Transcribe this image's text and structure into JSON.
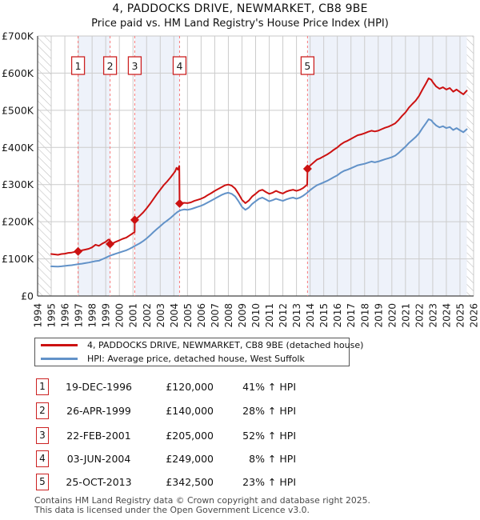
{
  "header": {
    "title": "4, PADDOCKS DRIVE, NEWMARKET, CB8 9BE",
    "subtitle": "Price paid vs. HM Land Registry's House Price Index (HPI)"
  },
  "legend": {
    "property_label": "4, PADDOCKS DRIVE, NEWMARKET, CB8 9BE (detached house)",
    "hpi_label": "HPI: Average price, detached house, West Suffolk"
  },
  "footer": {
    "line1": "Contains HM Land Registry data © Crown copyright and database right 2025.",
    "line2": "This data is licensed under the Open Government Licence v3.0."
  },
  "colors": {
    "property_line": "#cc1111",
    "hpi_line": "#6292c8",
    "sale_dash": "#f97c7c",
    "ownership_shade": "#eef2fa",
    "grid": "#cccccc",
    "border": "#c8c8c8",
    "axis": "#444444",
    "hatch": "#bbbbbb",
    "marker_box_border": "#cc2222",
    "text": "#1a1a1a",
    "footer_text": "#4a4a4a"
  },
  "sales": [
    {
      "num": "1",
      "date": "19-DEC-1996",
      "price": "£120,000",
      "hpi_diff": "41% ↑ HPI",
      "x": 1996.97,
      "value_k": 120
    },
    {
      "num": "2",
      "date": "26-APR-1999",
      "price": "£140,000",
      "hpi_diff": "28% ↑ HPI",
      "x": 1999.32,
      "value_k": 140
    },
    {
      "num": "3",
      "date": "22-FEB-2001",
      "price": "£205,000",
      "hpi_diff": "52% ↑ HPI",
      "x": 2001.13,
      "value_k": 205
    },
    {
      "num": "4",
      "date": "03-JUN-2004",
      "price": "£249,000",
      "hpi_diff": "8% ↑ HPI",
      "x": 2004.42,
      "value_k": 249
    },
    {
      "num": "5",
      "date": "25-OCT-2013",
      "price": "£342,500",
      "hpi_diff": "23% ↑ HPI",
      "x": 2013.81,
      "value_k": 342.5
    }
  ],
  "chart_data": {
    "type": "line",
    "title": "4, PADDOCKS DRIVE, NEWMARKET, CB8 9BE",
    "subtitle": "Price paid vs. HM Land Registry's House Price Index (HPI)",
    "xlabel": "",
    "ylabel": "",
    "y_unit": "thousand GBP",
    "x_range": [
      1994,
      2026
    ],
    "y_range_k": [
      0,
      700
    ],
    "grid": true,
    "legend_position": "bottom",
    "x_ticks": [
      1994,
      1995,
      1996,
      1997,
      1998,
      1999,
      2000,
      2001,
      2002,
      2003,
      2004,
      2005,
      2006,
      2007,
      2008,
      2009,
      2010,
      2011,
      2012,
      2013,
      2014,
      2015,
      2016,
      2017,
      2018,
      2019,
      2020,
      2021,
      2022,
      2023,
      2024,
      2025,
      2026
    ],
    "y_ticks": [
      {
        "v": 0,
        "label": "£0"
      },
      {
        "v": 100,
        "label": "£100K"
      },
      {
        "v": 200,
        "label": "£200K"
      },
      {
        "v": 300,
        "label": "£300K"
      },
      {
        "v": 400,
        "label": "£400K"
      },
      {
        "v": 500,
        "label": "£500K"
      },
      {
        "v": 600,
        "label": "£600K"
      },
      {
        "v": 700,
        "label": "£700K"
      }
    ],
    "ownership_periods": [
      [
        1996.97,
        1999.32
      ],
      [
        2001.13,
        2004.42
      ],
      [
        2013.81,
        2025.5
      ]
    ],
    "no_data_regions": [
      [
        1994,
        1995
      ],
      [
        2025.5,
        2026
      ]
    ],
    "series": [
      {
        "name": "4, PADDOCKS DRIVE, NEWMARKET, CB8 9BE (detached house)",
        "color": "#cc1111",
        "points": [
          [
            1995.0,
            113
          ],
          [
            1995.25,
            112
          ],
          [
            1995.5,
            111
          ],
          [
            1995.75,
            113
          ],
          [
            1996.0,
            114
          ],
          [
            1996.25,
            116
          ],
          [
            1996.5,
            117
          ],
          [
            1996.75,
            119
          ],
          [
            1996.97,
            120
          ],
          [
            1997.25,
            123
          ],
          [
            1997.5,
            125
          ],
          [
            1997.75,
            127
          ],
          [
            1998.0,
            131
          ],
          [
            1998.25,
            138
          ],
          [
            1998.5,
            135
          ],
          [
            1998.75,
            141
          ],
          [
            1999.0,
            146
          ],
          [
            1999.2,
            152
          ],
          [
            1999.3,
            151
          ],
          [
            1999.32,
            140
          ],
          [
            1999.5,
            142
          ],
          [
            1999.75,
            146
          ],
          [
            2000.0,
            150
          ],
          [
            2000.25,
            154
          ],
          [
            2000.5,
            157
          ],
          [
            2000.75,
            163
          ],
          [
            2001.0,
            169
          ],
          [
            2001.12,
            172
          ],
          [
            2001.13,
            205
          ],
          [
            2001.25,
            208
          ],
          [
            2001.5,
            216
          ],
          [
            2001.75,
            225
          ],
          [
            2002.0,
            236
          ],
          [
            2002.25,
            248
          ],
          [
            2002.5,
            261
          ],
          [
            2002.75,
            274
          ],
          [
            2003.0,
            286
          ],
          [
            2003.25,
            298
          ],
          [
            2003.5,
            308
          ],
          [
            2003.75,
            319
          ],
          [
            2004.0,
            331
          ],
          [
            2004.1,
            336
          ],
          [
            2004.2,
            345
          ],
          [
            2004.3,
            340
          ],
          [
            2004.4,
            350
          ],
          [
            2004.42,
            249
          ],
          [
            2004.6,
            250
          ],
          [
            2004.75,
            251
          ],
          [
            2005.0,
            250
          ],
          [
            2005.25,
            252
          ],
          [
            2005.5,
            256
          ],
          [
            2005.75,
            259
          ],
          [
            2006.0,
            262
          ],
          [
            2006.25,
            266
          ],
          [
            2006.5,
            272
          ],
          [
            2006.75,
            277
          ],
          [
            2007.0,
            283
          ],
          [
            2007.25,
            288
          ],
          [
            2007.5,
            293
          ],
          [
            2007.75,
            298
          ],
          [
            2008.0,
            300
          ],
          [
            2008.25,
            297
          ],
          [
            2008.5,
            289
          ],
          [
            2008.75,
            275
          ],
          [
            2009.0,
            259
          ],
          [
            2009.25,
            250
          ],
          [
            2009.5,
            257
          ],
          [
            2009.75,
            268
          ],
          [
            2010.0,
            275
          ],
          [
            2010.25,
            283
          ],
          [
            2010.5,
            286
          ],
          [
            2010.75,
            280
          ],
          [
            2011.0,
            275
          ],
          [
            2011.25,
            278
          ],
          [
            2011.5,
            283
          ],
          [
            2011.75,
            279
          ],
          [
            2012.0,
            276
          ],
          [
            2012.25,
            281
          ],
          [
            2012.5,
            284
          ],
          [
            2012.75,
            286
          ],
          [
            2013.0,
            283
          ],
          [
            2013.25,
            286
          ],
          [
            2013.5,
            291
          ],
          [
            2013.79,
            300
          ],
          [
            2013.81,
            342.5
          ],
          [
            2014.0,
            351
          ],
          [
            2014.25,
            359
          ],
          [
            2014.5,
            367
          ],
          [
            2014.75,
            371
          ],
          [
            2015.0,
            376
          ],
          [
            2015.25,
            381
          ],
          [
            2015.5,
            387
          ],
          [
            2015.75,
            394
          ],
          [
            2016.0,
            400
          ],
          [
            2016.25,
            408
          ],
          [
            2016.5,
            414
          ],
          [
            2016.75,
            418
          ],
          [
            2017.0,
            423
          ],
          [
            2017.25,
            428
          ],
          [
            2017.5,
            433
          ],
          [
            2017.75,
            435
          ],
          [
            2018.0,
            438
          ],
          [
            2018.25,
            442
          ],
          [
            2018.5,
            445
          ],
          [
            2018.75,
            443
          ],
          [
            2019.0,
            445
          ],
          [
            2019.25,
            449
          ],
          [
            2019.5,
            453
          ],
          [
            2019.75,
            456
          ],
          [
            2020.0,
            460
          ],
          [
            2020.25,
            465
          ],
          [
            2020.5,
            474
          ],
          [
            2020.75,
            485
          ],
          [
            2021.0,
            494
          ],
          [
            2021.25,
            507
          ],
          [
            2021.5,
            517
          ],
          [
            2021.75,
            526
          ],
          [
            2022.0,
            539
          ],
          [
            2022.25,
            556
          ],
          [
            2022.5,
            572
          ],
          [
            2022.7,
            586
          ],
          [
            2022.9,
            582
          ],
          [
            2023.0,
            576
          ],
          [
            2023.25,
            564
          ],
          [
            2023.5,
            558
          ],
          [
            2023.75,
            562
          ],
          [
            2024.0,
            556
          ],
          [
            2024.25,
            560
          ],
          [
            2024.5,
            550
          ],
          [
            2024.75,
            556
          ],
          [
            2025.0,
            549
          ],
          [
            2025.25,
            543
          ],
          [
            2025.5,
            553
          ]
        ]
      },
      {
        "name": "HPI: Average price, detached house, West Suffolk",
        "color": "#6292c8",
        "points": [
          [
            1995.0,
            80
          ],
          [
            1995.25,
            79.5
          ],
          [
            1995.5,
            79
          ],
          [
            1995.75,
            80
          ],
          [
            1996.0,
            81
          ],
          [
            1996.25,
            82
          ],
          [
            1996.5,
            83
          ],
          [
            1996.75,
            84.5
          ],
          [
            1997.0,
            86
          ],
          [
            1997.25,
            87
          ],
          [
            1997.5,
            88.5
          ],
          [
            1997.75,
            90
          ],
          [
            1998.0,
            92
          ],
          [
            1998.25,
            94
          ],
          [
            1998.5,
            95
          ],
          [
            1998.75,
            99
          ],
          [
            1999.0,
            103
          ],
          [
            1999.25,
            107.5
          ],
          [
            1999.5,
            111
          ],
          [
            1999.75,
            114
          ],
          [
            2000.0,
            117
          ],
          [
            2000.25,
            120
          ],
          [
            2000.5,
            123
          ],
          [
            2000.75,
            127
          ],
          [
            2001.0,
            132
          ],
          [
            2001.25,
            137
          ],
          [
            2001.5,
            142
          ],
          [
            2001.75,
            148
          ],
          [
            2002.0,
            155
          ],
          [
            2002.25,
            163
          ],
          [
            2002.5,
            172
          ],
          [
            2002.75,
            180
          ],
          [
            2003.0,
            188
          ],
          [
            2003.25,
            196
          ],
          [
            2003.5,
            203
          ],
          [
            2003.75,
            210
          ],
          [
            2004.0,
            218
          ],
          [
            2004.25,
            226
          ],
          [
            2004.5,
            231
          ],
          [
            2004.75,
            233
          ],
          [
            2005.0,
            232
          ],
          [
            2005.25,
            234
          ],
          [
            2005.5,
            237
          ],
          [
            2005.75,
            240
          ],
          [
            2006.0,
            243
          ],
          [
            2006.25,
            247
          ],
          [
            2006.5,
            252
          ],
          [
            2006.75,
            257
          ],
          [
            2007.0,
            262
          ],
          [
            2007.25,
            267
          ],
          [
            2007.5,
            272
          ],
          [
            2007.75,
            276
          ],
          [
            2008.0,
            278
          ],
          [
            2008.25,
            275
          ],
          [
            2008.5,
            268
          ],
          [
            2008.75,
            255
          ],
          [
            2009.0,
            240
          ],
          [
            2009.25,
            232
          ],
          [
            2009.5,
            238
          ],
          [
            2009.75,
            248
          ],
          [
            2010.0,
            255
          ],
          [
            2010.25,
            262
          ],
          [
            2010.5,
            265
          ],
          [
            2010.75,
            260
          ],
          [
            2011.0,
            255
          ],
          [
            2011.25,
            258
          ],
          [
            2011.5,
            262
          ],
          [
            2011.75,
            259
          ],
          [
            2012.0,
            256
          ],
          [
            2012.25,
            260
          ],
          [
            2012.5,
            263
          ],
          [
            2012.75,
            265
          ],
          [
            2013.0,
            262
          ],
          [
            2013.25,
            265
          ],
          [
            2013.5,
            270
          ],
          [
            2013.75,
            277
          ],
          [
            2014.0,
            285
          ],
          [
            2014.25,
            292
          ],
          [
            2014.5,
            298
          ],
          [
            2014.75,
            302
          ],
          [
            2015.0,
            306
          ],
          [
            2015.25,
            310
          ],
          [
            2015.5,
            315
          ],
          [
            2015.75,
            320
          ],
          [
            2016.0,
            325
          ],
          [
            2016.25,
            332
          ],
          [
            2016.5,
            337
          ],
          [
            2016.75,
            340
          ],
          [
            2017.0,
            344
          ],
          [
            2017.25,
            348
          ],
          [
            2017.5,
            352
          ],
          [
            2017.75,
            354
          ],
          [
            2018.0,
            356
          ],
          [
            2018.25,
            359
          ],
          [
            2018.5,
            362
          ],
          [
            2018.75,
            360
          ],
          [
            2019.0,
            362
          ],
          [
            2019.25,
            365
          ],
          [
            2019.5,
            368
          ],
          [
            2019.75,
            371
          ],
          [
            2020.0,
            374
          ],
          [
            2020.25,
            378
          ],
          [
            2020.5,
            385
          ],
          [
            2020.75,
            394
          ],
          [
            2021.0,
            402
          ],
          [
            2021.25,
            412
          ],
          [
            2021.5,
            420
          ],
          [
            2021.75,
            428
          ],
          [
            2022.0,
            438
          ],
          [
            2022.25,
            452
          ],
          [
            2022.5,
            465
          ],
          [
            2022.7,
            476
          ],
          [
            2022.9,
            473
          ],
          [
            2023.0,
            468
          ],
          [
            2023.25,
            459
          ],
          [
            2023.5,
            454
          ],
          [
            2023.75,
            457
          ],
          [
            2024.0,
            452
          ],
          [
            2024.25,
            455
          ],
          [
            2024.5,
            447
          ],
          [
            2024.75,
            452
          ],
          [
            2025.0,
            446
          ],
          [
            2025.25,
            441
          ],
          [
            2025.5,
            449
          ]
        ]
      }
    ]
  }
}
